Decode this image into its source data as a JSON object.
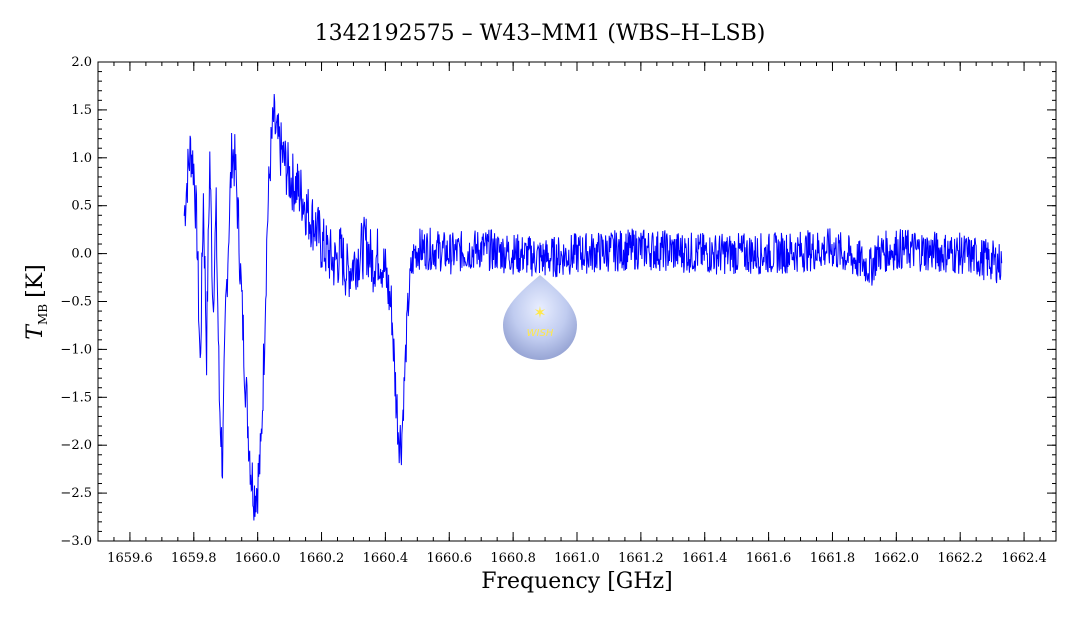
{
  "chart_data": {
    "type": "line",
    "title": "1342192575 – W43–MM1 (WBS–H–LSB)",
    "xlabel": "Frequency [GHz]",
    "ylabel_main": "T",
    "ylabel_sub": "MB",
    "ylabel_unit": "[K]",
    "xlim": [
      1659.5,
      1662.5
    ],
    "ylim": [
      -3.0,
      2.0
    ],
    "x_ticks": [
      1659.6,
      1659.8,
      1660.0,
      1660.2,
      1660.4,
      1660.6,
      1660.8,
      1661.0,
      1661.2,
      1661.4,
      1661.6,
      1661.8,
      1662.0,
      1662.2,
      1662.4
    ],
    "x_tick_labels": [
      "1659.6",
      "1659.8",
      "1660.0",
      "1660.2",
      "1660.4",
      "1660.6",
      "1660.8",
      "1661.0",
      "1661.2",
      "1661.4",
      "1661.6",
      "1661.8",
      "1662.0",
      "1662.2",
      "1662.4"
    ],
    "y_ticks": [
      2.0,
      1.5,
      1.0,
      0.5,
      0.0,
      -0.5,
      -1.0,
      -1.5,
      -2.0,
      -2.5,
      -3.0
    ],
    "y_tick_labels": [
      "2.0",
      "1.5",
      "1.0",
      "0.5",
      "0.0",
      "−0.5",
      "−1.0",
      "−1.5",
      "−2.0",
      "−2.5",
      "−3.0"
    ],
    "grid": false,
    "series_color": "#0000ff",
    "series": [
      {
        "x": [
          1659.77,
          1659.78,
          1659.79,
          1659.8,
          1659.81,
          1659.82,
          1659.83,
          1659.84,
          1659.85,
          1659.86,
          1659.87,
          1659.88,
          1659.89,
          1659.9,
          1659.91,
          1659.92,
          1659.93,
          1659.94,
          1659.95,
          1659.96,
          1659.97,
          1659.98,
          1659.99,
          1660.0,
          1660.01,
          1660.02,
          1660.03,
          1660.04,
          1660.05,
          1660.06,
          1660.08,
          1660.1,
          1660.12,
          1660.14,
          1660.16,
          1660.18,
          1660.2,
          1660.22,
          1660.24,
          1660.26,
          1660.28,
          1660.3,
          1660.32,
          1660.34,
          1660.36,
          1660.38,
          1660.4,
          1660.42,
          1660.43,
          1660.44,
          1660.45,
          1660.46,
          1660.47,
          1660.48,
          1660.49,
          1660.5,
          1660.55,
          1660.6,
          1660.7,
          1660.8,
          1660.9,
          1661.0,
          1661.2,
          1661.4,
          1661.6,
          1661.8,
          1661.9,
          1661.92,
          1661.94,
          1662.0,
          1662.2,
          1662.33
        ],
        "y": [
          0.4,
          0.8,
          1.1,
          0.9,
          0.2,
          -1.2,
          0.6,
          -1.0,
          1.0,
          -0.5,
          0.4,
          -1.5,
          -2.2,
          -0.6,
          0.3,
          1.1,
          0.9,
          0.3,
          -0.5,
          -1.2,
          -1.8,
          -2.3,
          -2.5,
          -2.4,
          -2.1,
          -1.0,
          0.3,
          1.0,
          1.4,
          1.2,
          1.0,
          0.8,
          0.7,
          0.6,
          0.4,
          0.3,
          0.1,
          0.0,
          -0.1,
          0.0,
          -0.2,
          -0.1,
          0.0,
          0.1,
          -0.1,
          0.0,
          -0.2,
          -0.6,
          -1.3,
          -1.8,
          -2.0,
          -1.3,
          -0.6,
          -0.2,
          0.0,
          0.05,
          0.05,
          0.0,
          0.05,
          0.0,
          -0.05,
          0.0,
          0.05,
          0.0,
          0.0,
          0.05,
          -0.1,
          -0.15,
          0.0,
          0.05,
          0.0,
          -0.1
        ]
      }
    ]
  }
}
